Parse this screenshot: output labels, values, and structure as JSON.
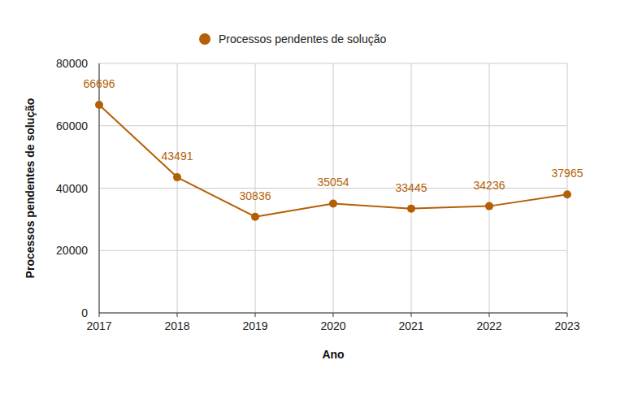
{
  "chart_data": {
    "type": "line",
    "x_label": "Ano",
    "y_label": "Processos pendentes de solução",
    "x": [
      2017,
      2018,
      2019,
      2020,
      2021,
      2022,
      2023
    ],
    "series": [
      {
        "name": "Processos pendentes de solução",
        "color": "#b45f06",
        "values": [
          66696,
          43491,
          30836,
          35054,
          33445,
          34236,
          37965
        ],
        "marker": "circle",
        "line_style": "solid"
      }
    ],
    "xlim": [
      2017,
      2023
    ],
    "xticks": [
      2017,
      2018,
      2019,
      2020,
      2021,
      2022,
      2023
    ],
    "ylim": [
      0,
      80000
    ],
    "yticks": [
      0,
      20000,
      40000,
      60000,
      80000
    ],
    "grid": true,
    "legend": "top",
    "data_labels": true
  }
}
